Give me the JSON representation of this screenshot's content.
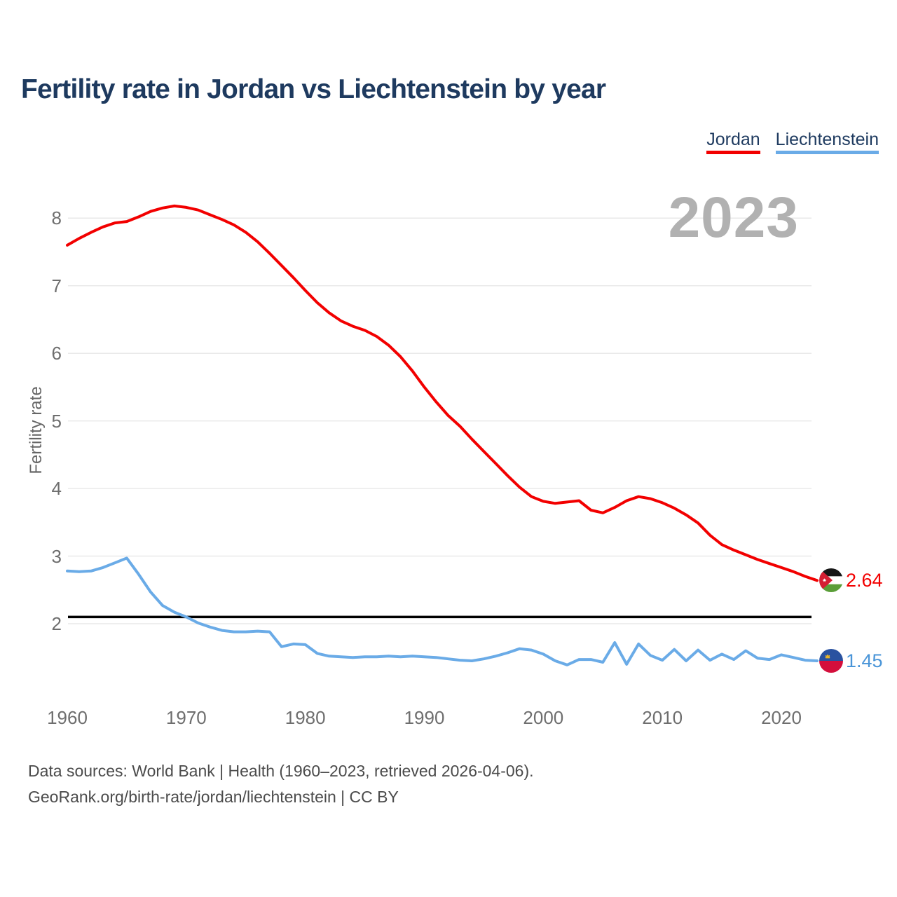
{
  "header": {
    "title": "Fertility rate in Jordan vs Liechtenstein by year"
  },
  "legend": {
    "items": [
      {
        "label": "Jordan",
        "color": "#f20000"
      },
      {
        "label": "Liechtenstein",
        "color": "#6aabe7"
      }
    ]
  },
  "watermark": "2023",
  "chart_data": {
    "type": "line",
    "title": "Fertility rate in Jordan vs Liechtenstein by year",
    "xlabel": "",
    "ylabel": "Fertility rate",
    "grid": "horizontal",
    "legend_position": "top-right",
    "xlim": [
      1960,
      2023
    ],
    "ylim": [
      1.2,
      8.45
    ],
    "x_ticks": [
      1960,
      1970,
      1980,
      1990,
      2000,
      2010,
      2020
    ],
    "y_ticks": [
      2,
      3,
      4,
      5,
      6,
      7,
      8
    ],
    "reference_line": {
      "value": 2.1,
      "color": "#000000"
    },
    "x": [
      1960,
      1961,
      1962,
      1963,
      1964,
      1965,
      1966,
      1967,
      1968,
      1969,
      1970,
      1971,
      1972,
      1973,
      1974,
      1975,
      1976,
      1977,
      1978,
      1979,
      1980,
      1981,
      1982,
      1983,
      1984,
      1985,
      1986,
      1987,
      1988,
      1989,
      1990,
      1991,
      1992,
      1993,
      1994,
      1995,
      1996,
      1997,
      1998,
      1999,
      2000,
      2001,
      2002,
      2003,
      2004,
      2005,
      2006,
      2007,
      2008,
      2009,
      2010,
      2011,
      2012,
      2013,
      2014,
      2015,
      2016,
      2017,
      2018,
      2019,
      2020,
      2021,
      2022,
      2023
    ],
    "series": [
      {
        "name": "Jordan",
        "color": "#f20000",
        "end_label": "2.64",
        "flag_icon": "jordan-flag-icon",
        "values": [
          7.6,
          7.7,
          7.79,
          7.87,
          7.93,
          7.95,
          8.02,
          8.1,
          8.15,
          8.18,
          8.16,
          8.12,
          8.05,
          7.98,
          7.9,
          7.79,
          7.65,
          7.48,
          7.3,
          7.12,
          6.93,
          6.75,
          6.6,
          6.48,
          6.4,
          6.34,
          6.25,
          6.12,
          5.95,
          5.74,
          5.5,
          5.28,
          5.08,
          4.92,
          4.73,
          4.55,
          4.37,
          4.19,
          4.02,
          3.88,
          3.81,
          3.78,
          3.8,
          3.82,
          3.68,
          3.64,
          3.72,
          3.82,
          3.88,
          3.85,
          3.79,
          3.71,
          3.61,
          3.49,
          3.31,
          3.17,
          3.09,
          3.02,
          2.95,
          2.89,
          2.83,
          2.77,
          2.7,
          2.64
        ]
      },
      {
        "name": "Liechtenstein",
        "color": "#6aabe7",
        "end_label": "1.45",
        "flag_icon": "liechtenstein-flag-icon",
        "values": [
          2.78,
          2.77,
          2.78,
          2.83,
          2.9,
          2.97,
          2.73,
          2.47,
          2.27,
          2.17,
          2.1,
          2.01,
          1.95,
          1.9,
          1.88,
          1.88,
          1.89,
          1.88,
          1.66,
          1.7,
          1.69,
          1.56,
          1.52,
          1.51,
          1.5,
          1.51,
          1.51,
          1.52,
          1.51,
          1.52,
          1.51,
          1.5,
          1.48,
          1.46,
          1.45,
          1.48,
          1.52,
          1.57,
          1.63,
          1.61,
          1.55,
          1.45,
          1.39,
          1.47,
          1.47,
          1.43,
          1.72,
          1.4,
          1.7,
          1.53,
          1.46,
          1.62,
          1.45,
          1.61,
          1.46,
          1.55,
          1.47,
          1.6,
          1.49,
          1.47,
          1.54,
          1.5,
          1.46,
          1.45
        ]
      }
    ]
  },
  "footer": {
    "line1": "Data sources: World Bank | Health (1960–2023, retrieved 2026-04-06).",
    "line2": "GeoRank.org/birth-rate/jordan/liechtenstein | CC BY"
  }
}
